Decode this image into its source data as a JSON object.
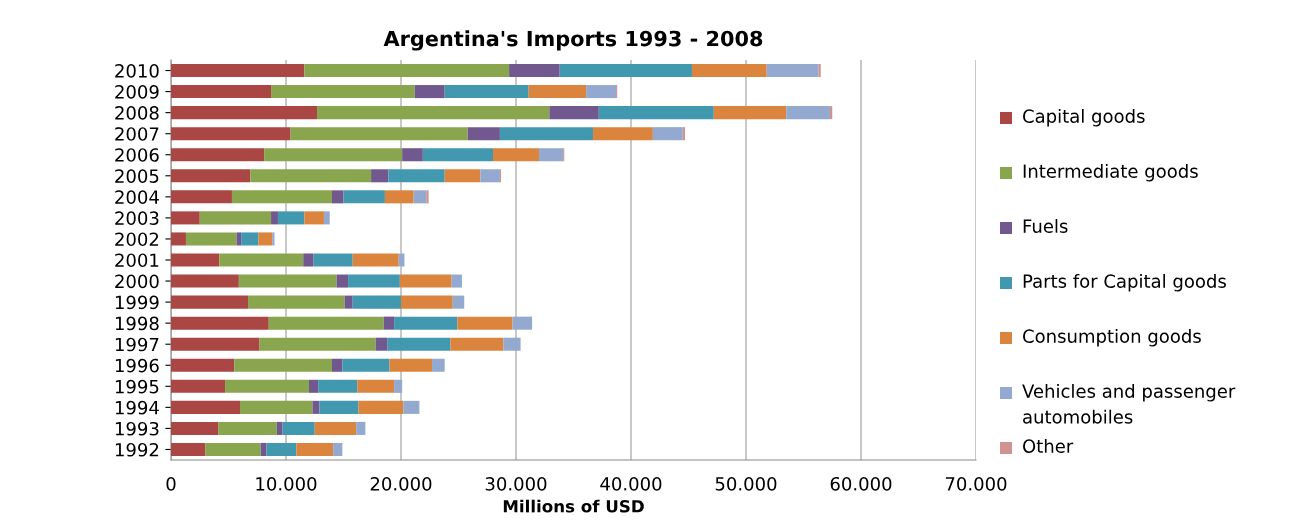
{
  "chart_data": {
    "type": "bar",
    "orientation": "horizontal",
    "stacked": true,
    "title": "Argentina's Imports 1993 - 2008",
    "xlabel": "Millions of USD",
    "categories": [
      "2010",
      "2009",
      "2008",
      "2007",
      "2006",
      "2005",
      "2004",
      "2003",
      "2002",
      "2001",
      "2000",
      "1999",
      "1998",
      "1997",
      "1996",
      "1995",
      "1994",
      "1993",
      "1992"
    ],
    "series": [
      {
        "name": "Capital goods",
        "color": "#aa4643",
        "values": [
          11600,
          8700,
          12700,
          10400,
          8100,
          6900,
          5300,
          2500,
          1300,
          4200,
          5900,
          6700,
          8500,
          7700,
          5500,
          4700,
          6000,
          4100,
          3000
        ]
      },
      {
        "name": "Intermediate goods",
        "color": "#89a54e",
        "values": [
          17800,
          12500,
          20200,
          15400,
          12000,
          10500,
          8700,
          6200,
          4400,
          7300,
          8500,
          8400,
          10000,
          10100,
          8500,
          7300,
          6300,
          5100,
          4800
        ]
      },
      {
        "name": "Fuels",
        "color": "#71588f",
        "values": [
          4400,
          2600,
          4300,
          2800,
          1800,
          1500,
          1000,
          600,
          400,
          900,
          1000,
          700,
          900,
          1000,
          900,
          800,
          600,
          500,
          500
        ]
      },
      {
        "name": "Parts for Capital goods",
        "color": "#4198af",
        "values": [
          11500,
          7300,
          10000,
          8100,
          6100,
          4900,
          3600,
          2300,
          1500,
          3400,
          4500,
          4200,
          5500,
          5500,
          4100,
          3400,
          3400,
          2800,
          2600
        ]
      },
      {
        "name": "Consumption goods",
        "color": "#db843d",
        "values": [
          6500,
          5000,
          6300,
          5200,
          4000,
          3100,
          2500,
          1700,
          1200,
          4000,
          4500,
          4500,
          4800,
          4600,
          3700,
          3200,
          3900,
          3600,
          3200
        ]
      },
      {
        "name": "Vehicles and passenger automobiles",
        "color": "#93a9cf",
        "values": [
          4500,
          2600,
          3800,
          2600,
          2100,
          1700,
          1100,
          500,
          200,
          500,
          900,
          1000,
          1700,
          1500,
          1100,
          700,
          1400,
          800,
          800
        ]
      },
      {
        "name": "Other",
        "color": "#d19392",
        "values": [
          200,
          100,
          200,
          200,
          100,
          100,
          200,
          null,
          null,
          null,
          null,
          null,
          null,
          null,
          null,
          null,
          null,
          null,
          null
        ]
      }
    ],
    "xlim": [
      0,
      70000
    ],
    "xticks": [
      0,
      {
        "value": 10000,
        "label": "10.000"
      },
      {
        "value": 20000,
        "label": "20.000"
      },
      {
        "value": 30000,
        "label": "30.000"
      },
      {
        "value": 40000,
        "label": "40.000"
      },
      {
        "value": 50000,
        "label": "50.000"
      },
      {
        "value": 60000,
        "label": "60.000"
      },
      {
        "value": 70000,
        "label": "70.000"
      }
    ],
    "grid": "x",
    "legend": "right"
  }
}
